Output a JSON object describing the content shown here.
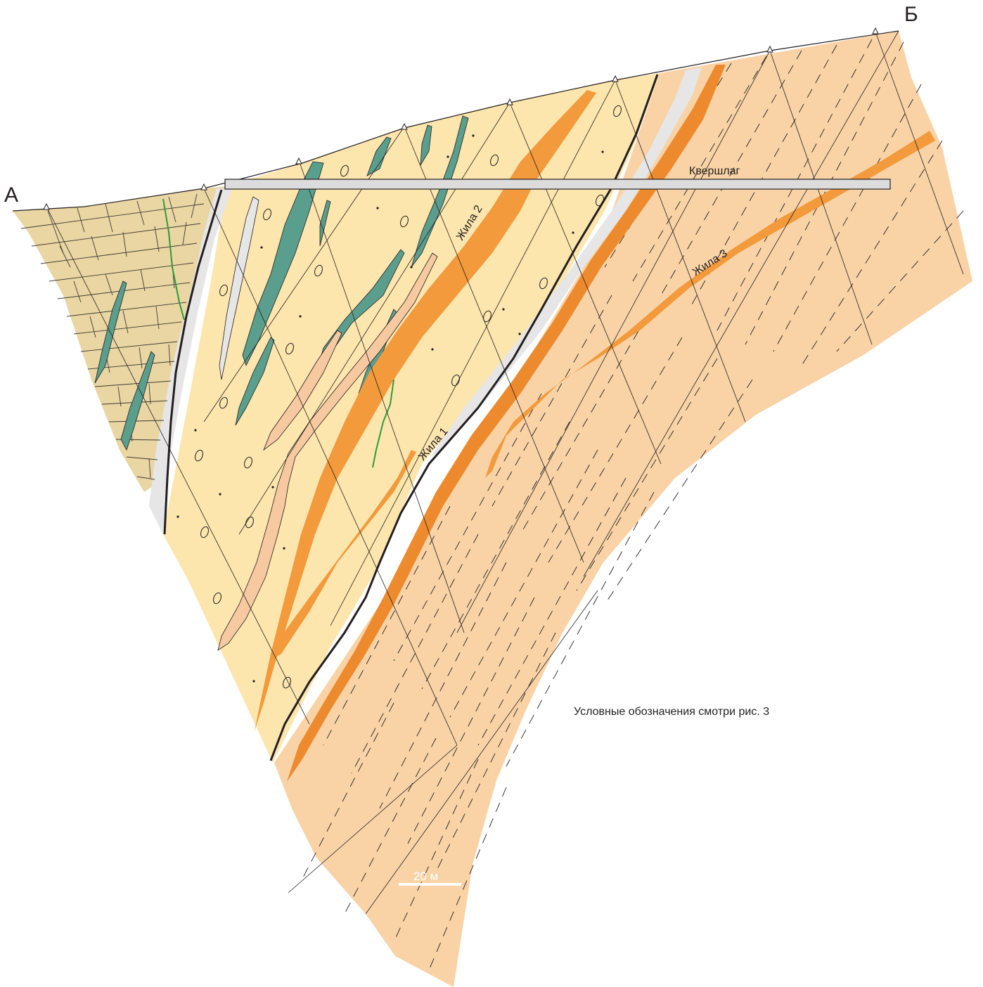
{
  "section": {
    "end_left": "А",
    "end_right": "Б",
    "adit": "Квершлаг",
    "veins": [
      "Жила 1",
      "Жила 2",
      "Жила 3"
    ],
    "legend_note": "Условные обозначения смотри рис. 3",
    "scale_bar": "20 м"
  },
  "colors": {
    "limestone_unit": "#e9d6a3",
    "conglomerate_unit": "#fde6ad",
    "schist_unit": "#f9d3a6",
    "vein_orange": "#f29a3c",
    "vein_dark_orange": "#ee8a2e",
    "greenstone_lens": "#5a9e8e",
    "quartzite_band": "#e6e6e6",
    "light_lens": "#f6c9a0",
    "outline": "#231f20",
    "green_trace": "#2a9b3c"
  }
}
